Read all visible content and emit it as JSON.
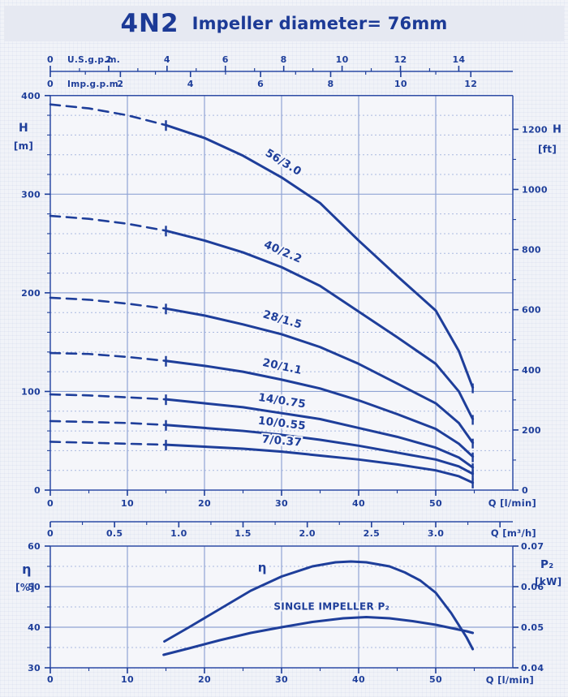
{
  "header": {
    "model": "4N2",
    "subtitle": "Impeller diameter= 76mm"
  },
  "colors": {
    "ink": "#1e3e9a",
    "grid_major": "#8fa3d4",
    "grid_minor": "#aab9e0",
    "border": "#2e4ca6",
    "paper": "#f1f3f8",
    "band": "#e6e9f2"
  },
  "top_axes": {
    "us_gpm": {
      "label": "U.S.g.p.m.",
      "values": [
        0,
        2,
        4,
        6,
        8,
        10,
        12,
        14
      ],
      "labels": [
        "0",
        "2",
        "4",
        "6",
        "8",
        "10",
        "12",
        "14"
      ],
      "lpm_per_unit": 3.785
    },
    "imp_gpm": {
      "label": "Imp.g.p.m.",
      "values": [
        0,
        2,
        4,
        6,
        8,
        10,
        12
      ],
      "labels": [
        "0",
        "2",
        "4",
        "6",
        "8",
        "10",
        "12"
      ],
      "lpm_per_unit": 4.546
    }
  },
  "chart_data": [
    {
      "type": "line",
      "id": "head-vs-flow",
      "x_axis_lpm": {
        "label": "Q [l/min]",
        "values": [
          0,
          10,
          20,
          30,
          40,
          50
        ],
        "labels": [
          "0",
          "10",
          "20",
          "30",
          "40",
          "50"
        ],
        "minor_step": 5,
        "max": 60
      },
      "x_axis_m3h": {
        "label": "Q [m³/h]",
        "values": [
          0,
          0.5,
          1.0,
          1.5,
          2.0,
          2.5,
          3.0
        ],
        "labels": [
          "0",
          "0.5",
          "1.0",
          "1.5",
          "2.0",
          "2.5",
          "3.0"
        ],
        "lpm_per_unit": 16.667,
        "extra_tick": 3.5
      },
      "y_axis_m": {
        "label": "H",
        "unit": "[m]",
        "values": [
          0,
          100,
          200,
          300,
          400
        ],
        "labels": [
          "0",
          "100",
          "200",
          "300",
          "400"
        ],
        "minor_step": 20,
        "max": 400
      },
      "y_axis_ft": {
        "label": "H",
        "unit": "[ft]",
        "values": [
          0,
          200,
          400,
          600,
          800,
          1000,
          1200
        ],
        "labels": [
          "0",
          "200",
          "400",
          "600",
          "800",
          "1000",
          "1200"
        ],
        "minor_step": 100,
        "m_per_ft": 0.3048
      },
      "min_flow_q": 15,
      "series": [
        {
          "label": "56/3.0",
          "points": [
            [
              0,
              391
            ],
            [
              5,
              387
            ],
            [
              10,
              380
            ],
            [
              15,
              370
            ],
            [
              20,
              357
            ],
            [
              25,
              339
            ],
            [
              30,
              317
            ],
            [
              35,
              291
            ],
            [
              40,
              253
            ],
            [
              45,
              217
            ],
            [
              50,
              182
            ],
            [
              53,
              141
            ],
            [
              54.8,
              104
            ]
          ]
        },
        {
          "label": "40/2.2",
          "points": [
            [
              0,
              278
            ],
            [
              5,
              275
            ],
            [
              10,
              270
            ],
            [
              15,
              263
            ],
            [
              20,
              253
            ],
            [
              25,
              241
            ],
            [
              30,
              226
            ],
            [
              35,
              207
            ],
            [
              40,
              181
            ],
            [
              45,
              155
            ],
            [
              50,
              128
            ],
            [
              53,
              100
            ],
            [
              54.8,
              72
            ]
          ]
        },
        {
          "label": "28/1.5",
          "points": [
            [
              0,
              195
            ],
            [
              5,
              193
            ],
            [
              10,
              189
            ],
            [
              15,
              184
            ],
            [
              20,
              177
            ],
            [
              25,
              168
            ],
            [
              30,
              158
            ],
            [
              35,
              145
            ],
            [
              40,
              128
            ],
            [
              45,
              108
            ],
            [
              50,
              88
            ],
            [
              53,
              68
            ],
            [
              54.8,
              48
            ]
          ]
        },
        {
          "label": "20/1.1",
          "points": [
            [
              0,
              139
            ],
            [
              5,
              138
            ],
            [
              10,
              135
            ],
            [
              15,
              131
            ],
            [
              20,
              126
            ],
            [
              25,
              120
            ],
            [
              30,
              112
            ],
            [
              35,
              103
            ],
            [
              40,
              91
            ],
            [
              45,
              77
            ],
            [
              50,
              62
            ],
            [
              53,
              47
            ],
            [
              54.8,
              34
            ]
          ]
        },
        {
          "label": "14/0.75",
          "points": [
            [
              0,
              97
            ],
            [
              5,
              96
            ],
            [
              10,
              94
            ],
            [
              15,
              92
            ],
            [
              20,
              88
            ],
            [
              25,
              84
            ],
            [
              30,
              78
            ],
            [
              35,
              72
            ],
            [
              40,
              63
            ],
            [
              45,
              54
            ],
            [
              50,
              43
            ],
            [
              53,
              33
            ],
            [
              54.8,
              23
            ]
          ]
        },
        {
          "label": "10/0.55",
          "points": [
            [
              0,
              70
            ],
            [
              5,
              69
            ],
            [
              10,
              68
            ],
            [
              15,
              66
            ],
            [
              20,
              63
            ],
            [
              25,
              60
            ],
            [
              30,
              56
            ],
            [
              35,
              51
            ],
            [
              40,
              45
            ],
            [
              45,
              38
            ],
            [
              50,
              31
            ],
            [
              53,
              24
            ],
            [
              54.8,
              16.5
            ]
          ]
        },
        {
          "label": "7/0.37",
          "points": [
            [
              0,
              49
            ],
            [
              5,
              48
            ],
            [
              10,
              47
            ],
            [
              15,
              46
            ],
            [
              20,
              44
            ],
            [
              25,
              42
            ],
            [
              30,
              39
            ],
            [
              35,
              35
            ],
            [
              40,
              31
            ],
            [
              45,
              26
            ],
            [
              50,
              20
            ],
            [
              53,
              14
            ],
            [
              54.8,
              7.5
            ]
          ]
        }
      ]
    },
    {
      "type": "line",
      "id": "efficiency-and-power",
      "x_axis": {
        "label": "Q [l/min]",
        "values": [
          0,
          10,
          20,
          30,
          40,
          50
        ],
        "labels": [
          "0",
          "10",
          "20",
          "30",
          "40",
          "50"
        ],
        "minor_step": 5,
        "max": 60
      },
      "y_left": {
        "label": "η",
        "unit": "[%]",
        "min": 30,
        "max": 60,
        "values": [
          30,
          40,
          50,
          60
        ],
        "labels": [
          "30",
          "40",
          "50",
          "60"
        ],
        "minor_step": 5
      },
      "y_right": {
        "label": "P₂",
        "unit": "[kW]",
        "min": 0.04,
        "max": 0.07,
        "values": [
          0.04,
          0.05,
          0.06,
          0.07
        ],
        "labels": [
          "0.04",
          "0.05",
          "0.06",
          "0.07"
        ],
        "minor_step": 0.005
      },
      "series": [
        {
          "label": "η",
          "axis": "left",
          "points": [
            [
              14.8,
              36.5
            ],
            [
              18,
              40
            ],
            [
              22,
              44.5
            ],
            [
              26,
              49
            ],
            [
              30,
              52.5
            ],
            [
              34,
              55
            ],
            [
              37,
              56
            ],
            [
              39,
              56.2
            ],
            [
              41,
              56
            ],
            [
              44,
              55
            ],
            [
              46,
              53.5
            ],
            [
              48,
              51.5
            ],
            [
              50,
              48.5
            ],
            [
              52,
              43.5
            ],
            [
              54,
              37.5
            ],
            [
              54.8,
              34.6
            ]
          ]
        },
        {
          "label": "SINGLE IMPELLER P₂",
          "axis": "right",
          "points": [
            [
              14.7,
              0.0432
            ],
            [
              18,
              0.0448
            ],
            [
              22,
              0.0468
            ],
            [
              26,
              0.0486
            ],
            [
              30,
              0.05
            ],
            [
              34,
              0.0513
            ],
            [
              38,
              0.0522
            ],
            [
              41,
              0.0525
            ],
            [
              44,
              0.0522
            ],
            [
              47,
              0.0515
            ],
            [
              50,
              0.0506
            ],
            [
              52,
              0.0498
            ],
            [
              54,
              0.049
            ],
            [
              54.8,
              0.0486
            ]
          ]
        }
      ]
    }
  ]
}
